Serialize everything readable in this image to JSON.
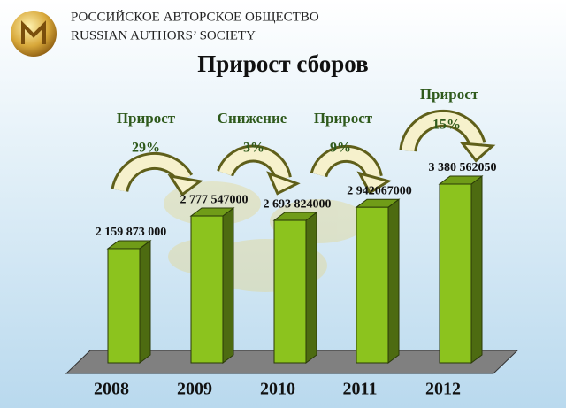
{
  "header": {
    "org_ru": "РОССИЙСКОЕ АВТОРСКОЕ ОБЩЕСТВО",
    "org_en": "RUSSIAN AUTHORS’ SOCIETY"
  },
  "chart_data": {
    "type": "bar3d",
    "title": "Прирост сборов",
    "categories": [
      "2008",
      "2009",
      "2010",
      "2011",
      "2012"
    ],
    "values": [
      2159873000,
      2777547000,
      2693824000,
      2942067000,
      3380562050
    ],
    "value_labels": [
      "2 159 873 000",
      "2 777 547000",
      "2 693 824000",
      "2 942067000",
      "3 380 562050"
    ],
    "color": "#8cc31e",
    "annotations": [
      {
        "label": "Прирост",
        "change": "29%"
      },
      {
        "label": "Снижение",
        "change": "3%"
      },
      {
        "label": "Прирост",
        "change": "9%"
      },
      {
        "label": "Прирост",
        "change": "15%"
      }
    ]
  }
}
